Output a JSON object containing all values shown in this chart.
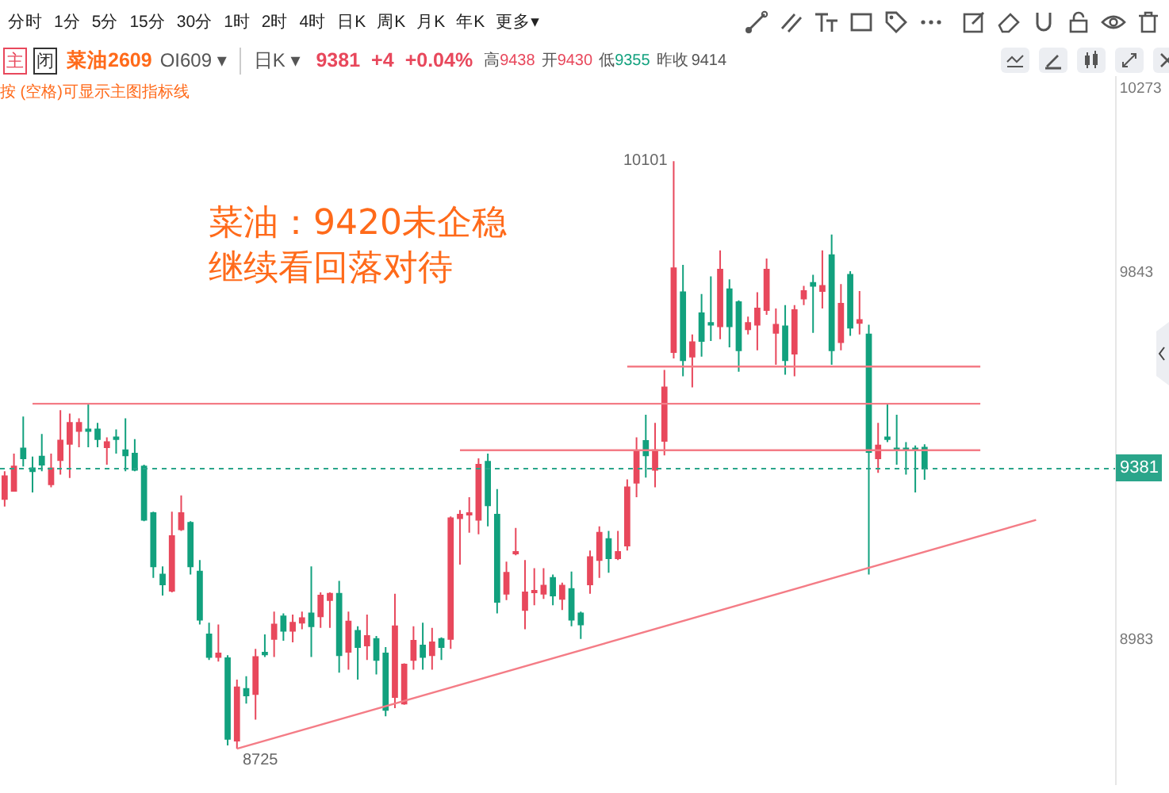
{
  "chart_data": {
    "type": "candlestick",
    "title": "菜油：9420未企稳",
    "subtitle": "继续看回落对待",
    "categories": [
      null,
      null,
      null,
      null,
      null,
      null,
      null,
      null,
      null,
      null,
      null,
      null,
      null,
      null,
      null,
      null,
      null,
      null,
      null,
      null,
      null,
      null,
      null,
      null,
      null,
      null,
      null,
      null,
      null,
      null,
      null,
      null,
      null,
      null,
      null,
      null,
      null,
      null,
      null,
      null,
      null,
      null,
      null,
      null,
      null,
      null,
      null,
      null,
      null,
      null,
      null,
      null,
      null,
      null,
      null,
      null,
      null,
      null,
      null,
      null,
      null,
      null,
      null,
      null,
      null,
      null,
      null,
      null,
      null,
      null,
      null,
      null,
      null,
      null,
      null,
      null,
      null,
      null,
      null,
      null,
      null,
      null,
      null,
      null,
      null,
      null,
      null,
      null,
      null,
      null,
      null,
      null,
      null,
      null,
      null,
      null,
      null,
      null,
      null,
      null,
      null,
      null,
      null,
      null,
      null,
      null,
      null,
      null,
      null,
      null,
      null,
      null,
      null,
      null,
      null,
      null,
      null,
      null,
      null,
      null
    ],
    "ohlc": [
      [
        9310,
        9375,
        9292,
        9363
      ],
      [
        9329,
        9416,
        9329,
        9386
      ],
      [
        9428,
        9503,
        9386,
        9405
      ],
      [
        9382,
        9409,
        9325,
        9375
      ],
      [
        9409,
        9462,
        9375,
        9390
      ],
      [
        9344,
        9416,
        9337,
        9382
      ],
      [
        9401,
        9518,
        9367,
        9447
      ],
      [
        9439,
        9510,
        9359,
        9488
      ],
      [
        9469,
        9499,
        9431,
        9488
      ],
      [
        9473,
        9533,
        9431,
        9469
      ],
      [
        9473,
        9488,
        9431,
        9450
      ],
      [
        9431,
        9454,
        9390,
        9443
      ],
      [
        9454,
        9473,
        9416,
        9450
      ],
      [
        9424,
        9499,
        9375,
        9412
      ],
      [
        9416,
        9450,
        9375,
        9378
      ],
      [
        9386,
        9390,
        9258,
        9261
      ],
      [
        9277,
        9280,
        9125,
        9152
      ],
      [
        9133,
        9152,
        9084,
        9110
      ],
      [
        9095,
        9280,
        9091,
        9223
      ],
      [
        9239,
        9318,
        9235,
        9277
      ],
      [
        9254,
        9258,
        9133,
        9152
      ],
      [
        9140,
        9167,
        9016,
        9027
      ],
      [
        8993,
        9020,
        8933,
        8940
      ],
      [
        8940,
        9016,
        8929,
        8948
      ],
      [
        8937,
        8944,
        8733,
        8748
      ],
      [
        8744,
        8887,
        8725,
        8869
      ],
      [
        8865,
        8895,
        8831,
        8850
      ],
      [
        8853,
        8959,
        8793,
        8940
      ],
      [
        8950,
        8993,
        8940,
        8946
      ],
      [
        8982,
        9046,
        8940,
        9016
      ],
      [
        9035,
        9042,
        8978,
        9001
      ],
      [
        9001,
        9039,
        8974,
        9020
      ],
      [
        9020,
        9046,
        9005,
        9031
      ],
      [
        9042,
        9152,
        8940,
        9012
      ],
      [
        9035,
        9091,
        9008,
        9084
      ],
      [
        9073,
        9091,
        9008,
        9088
      ],
      [
        9088,
        9118,
        8903,
        8944
      ],
      [
        8952,
        9046,
        8910,
        9023
      ],
      [
        9001,
        9012,
        8887,
        8963
      ],
      [
        8967,
        9039,
        8933,
        8989
      ],
      [
        8982,
        8989,
        8899,
        8933
      ],
      [
        8948,
        8963,
        8801,
        8816
      ],
      [
        8846,
        9088,
        8820,
        9012
      ],
      [
        8831,
        8925,
        8828,
        8922
      ],
      [
        8933,
        9012,
        8910,
        8978
      ],
      [
        8967,
        9020,
        8910,
        8940
      ],
      [
        8944,
        9008,
        8910,
        8974
      ],
      [
        8982,
        8986,
        8933,
        8963
      ],
      [
        8982,
        9269,
        8959,
        9265
      ],
      [
        9265,
        9284,
        9156,
        9273
      ],
      [
        9273,
        9314,
        9231,
        9277
      ],
      [
        9261,
        9405,
        9227,
        9390
      ],
      [
        9397,
        9416,
        9246,
        9295
      ],
      [
        9273,
        9333,
        9042,
        9069
      ],
      [
        9088,
        9163,
        9073,
        9137
      ],
      [
        9182,
        9242,
        9178,
        9186
      ],
      [
        9050,
        9167,
        9005,
        9091
      ],
      [
        9091,
        9148,
        9061,
        9095
      ],
      [
        9088,
        9148,
        9076,
        9107
      ],
      [
        9125,
        9133,
        9061,
        9084
      ],
      [
        9076,
        9114,
        9050,
        9107
      ],
      [
        9099,
        9140,
        9012,
        9027
      ],
      [
        9042,
        9046,
        8982,
        9016
      ],
      [
        9110,
        9189,
        9088,
        9174
      ],
      [
        9167,
        9246,
        9125,
        9231
      ],
      [
        9216,
        9235,
        9137,
        9171
      ],
      [
        9171,
        9235,
        9167,
        9186
      ],
      [
        9201,
        9356,
        9189,
        9337
      ],
      [
        9348,
        9454,
        9314,
        9420
      ],
      [
        9446,
        9507,
        9360,
        9412
      ],
      [
        9378,
        9488,
        9337,
        9424
      ],
      [
        9446,
        9612,
        9412,
        9571
      ],
      [
        9654,
        10101,
        9639,
        9850
      ],
      [
        9794,
        9858,
        9597,
        9635
      ],
      [
        9643,
        9695,
        9571,
        9677
      ],
      [
        9745,
        9790,
        9643,
        9680
      ],
      [
        9722,
        9831,
        9680,
        9718
      ],
      [
        9714,
        9892,
        9684,
        9847
      ],
      [
        9801,
        9824,
        9665,
        9714
      ],
      [
        9771,
        9775,
        9608,
        9658
      ],
      [
        9707,
        9737,
        9695,
        9722
      ],
      [
        9718,
        9794,
        9658,
        9756
      ],
      [
        9752,
        9873,
        9741,
        9847
      ],
      [
        9699,
        9756,
        9624,
        9718
      ],
      [
        9714,
        9764,
        9601,
        9635
      ],
      [
        9650,
        9764,
        9597,
        9752
      ],
      [
        9779,
        9809,
        9764,
        9797
      ],
      [
        9816,
        9835,
        9699,
        9809
      ],
      [
        9797,
        9892,
        9756,
        9809
      ],
      [
        9881,
        9929,
        9624,
        9658
      ],
      [
        9677,
        9813,
        9658,
        9767
      ],
      [
        9835,
        9843,
        9692,
        9711
      ],
      [
        9722,
        9797,
        9695,
        9729
      ],
      [
        9695,
        9718,
        9133,
        9420
      ],
      [
        9405,
        9488,
        9371,
        9435
      ],
      [
        9454,
        9533,
        9443,
        9450
      ],
      [
        9428,
        9507,
        9390,
        9424
      ],
      [
        9428,
        9443,
        9367,
        9424
      ],
      [
        9428,
        9435,
        9325,
        9424
      ],
      [
        9430,
        9438,
        9355,
        9381
      ],
      null,
      null,
      null,
      null,
      null,
      null,
      null,
      null,
      null,
      null,
      null,
      null,
      null,
      null,
      null,
      null,
      null,
      null,
      null,
      null
    ],
    "series": [
      {
        "type": "line",
        "color": "#f47c86",
        "values": [
          null,
          null,
          null,
          9533,
          null,
          null,
          null,
          null,
          null,
          null,
          null,
          null,
          null,
          null,
          null,
          null,
          null,
          null,
          null,
          null,
          null,
          null,
          null,
          null,
          null,
          null,
          null,
          null,
          null,
          null,
          null,
          null,
          null,
          null,
          null,
          null,
          null,
          null,
          null,
          null,
          null,
          null,
          null,
          null,
          null,
          null,
          null,
          null,
          null,
          null,
          null,
          null,
          null,
          null,
          null,
          null,
          null,
          null,
          null,
          null,
          null,
          null,
          null,
          null,
          null,
          null,
          null,
          null,
          null,
          null,
          null,
          null,
          null,
          null,
          null,
          null,
          null,
          null,
          null,
          null,
          null,
          null,
          null,
          null,
          null,
          null,
          null,
          null,
          null,
          null,
          null,
          null,
          null,
          null,
          null,
          null,
          null,
          null,
          null,
          null,
          null,
          null,
          null,
          null,
          null,
          9533,
          null,
          null,
          null,
          null,
          null,
          null,
          null,
          null,
          null,
          null,
          null,
          null,
          null,
          null
        ]
      },
      {
        "type": "line",
        "color": "#f47c86",
        "values": [
          null,
          null,
          null,
          null,
          null,
          null,
          null,
          null,
          null,
          null,
          null,
          null,
          null,
          null,
          null,
          null,
          null,
          null,
          null,
          null,
          null,
          null,
          null,
          null,
          null,
          null,
          null,
          null,
          null,
          null,
          null,
          null,
          null,
          null,
          null,
          null,
          null,
          null,
          null,
          null,
          null,
          null,
          null,
          null,
          null,
          null,
          null,
          null,
          null,
          null,
          null,
          null,
          null,
          null,
          null,
          null,
          null,
          null,
          null,
          null,
          null,
          null,
          null,
          null,
          null,
          null,
          null,
          9620,
          null,
          null,
          null,
          null,
          null,
          null,
          null,
          null,
          null,
          null,
          null,
          null,
          null,
          null,
          null,
          null,
          null,
          null,
          null,
          null,
          null,
          null,
          null,
          null,
          null,
          null,
          null,
          null,
          null,
          null,
          null,
          null,
          null,
          null,
          null,
          null,
          null,
          9620,
          null,
          null,
          null,
          null,
          null,
          null,
          null,
          null,
          null,
          null,
          null,
          null,
          null,
          null
        ]
      },
      {
        "type": "line",
        "color": "#f47c86",
        "values": [
          null,
          null,
          null,
          null,
          null,
          null,
          null,
          null,
          null,
          null,
          null,
          null,
          null,
          null,
          null,
          null,
          null,
          null,
          null,
          null,
          null,
          null,
          null,
          null,
          null,
          null,
          null,
          null,
          null,
          null,
          null,
          null,
          null,
          null,
          null,
          null,
          null,
          null,
          null,
          null,
          null,
          null,
          null,
          null,
          null,
          null,
          null,
          null,
          null,
          9424,
          null,
          null,
          null,
          null,
          null,
          null,
          null,
          null,
          null,
          null,
          null,
          null,
          null,
          null,
          null,
          null,
          null,
          null,
          null,
          null,
          null,
          null,
          null,
          null,
          null,
          null,
          null,
          null,
          null,
          null,
          null,
          null,
          null,
          null,
          null,
          null,
          null,
          null,
          null,
          null,
          null,
          null,
          null,
          null,
          null,
          null,
          null,
          null,
          null,
          null,
          null,
          null,
          null,
          null,
          null,
          9424,
          null,
          null,
          null,
          null,
          null,
          null,
          null,
          null,
          null,
          null,
          null,
          null,
          null,
          null
        ]
      },
      {
        "type": "line",
        "color": "#f47c86",
        "values": [
          null,
          null,
          null,
          null,
          null,
          null,
          null,
          null,
          null,
          null,
          null,
          null,
          null,
          null,
          null,
          null,
          null,
          null,
          null,
          null,
          null,
          null,
          null,
          null,
          null,
          8725,
          null,
          null,
          null,
          null,
          null,
          null,
          null,
          null,
          null,
          null,
          null,
          null,
          null,
          null,
          null,
          null,
          null,
          null,
          null,
          null,
          null,
          null,
          null,
          null,
          null,
          null,
          null,
          null,
          null,
          null,
          null,
          null,
          null,
          null,
          null,
          null,
          null,
          null,
          null,
          null,
          null,
          null,
          null,
          null,
          null,
          null,
          null,
          null,
          null,
          null,
          null,
          null,
          null,
          null,
          null,
          null,
          null,
          null,
          null,
          null,
          null,
          null,
          null,
          null,
          null,
          null,
          null,
          null,
          null,
          null,
          null,
          null,
          null,
          null,
          null,
          null,
          null,
          null,
          null,
          null,
          null,
          null,
          null,
          null,
          null,
          9261,
          null,
          null,
          null,
          null,
          null,
          null,
          null,
          null
        ]
      }
    ],
    "ylim": [
      8640,
      10300
    ],
    "yticks": [
      10273,
      9843,
      8983
    ],
    "ref_lines": [
      {
        "axis": "y",
        "value": 9381,
        "label": "9381",
        "color": "#2aa58a",
        "line_style": "dotted"
      }
    ],
    "tick_labels": "y",
    "grid": false,
    "annotations": [
      "10101",
      "8725",
      "分时",
      "1分",
      "5分",
      "15分",
      "30分",
      "1时",
      "2时",
      "4时",
      "日K",
      "周K",
      "月K",
      "年K",
      "更多▾",
      "主",
      "闭",
      "菜油2609",
      "OI609 ▾",
      "日K ▾",
      "9381",
      "+4",
      "+0.04%",
      "高",
      "9438",
      "开",
      "9430",
      "低",
      "9355",
      "昨收",
      "9414",
      "按 (空格)可显示主图指标线"
    ]
  }
}
